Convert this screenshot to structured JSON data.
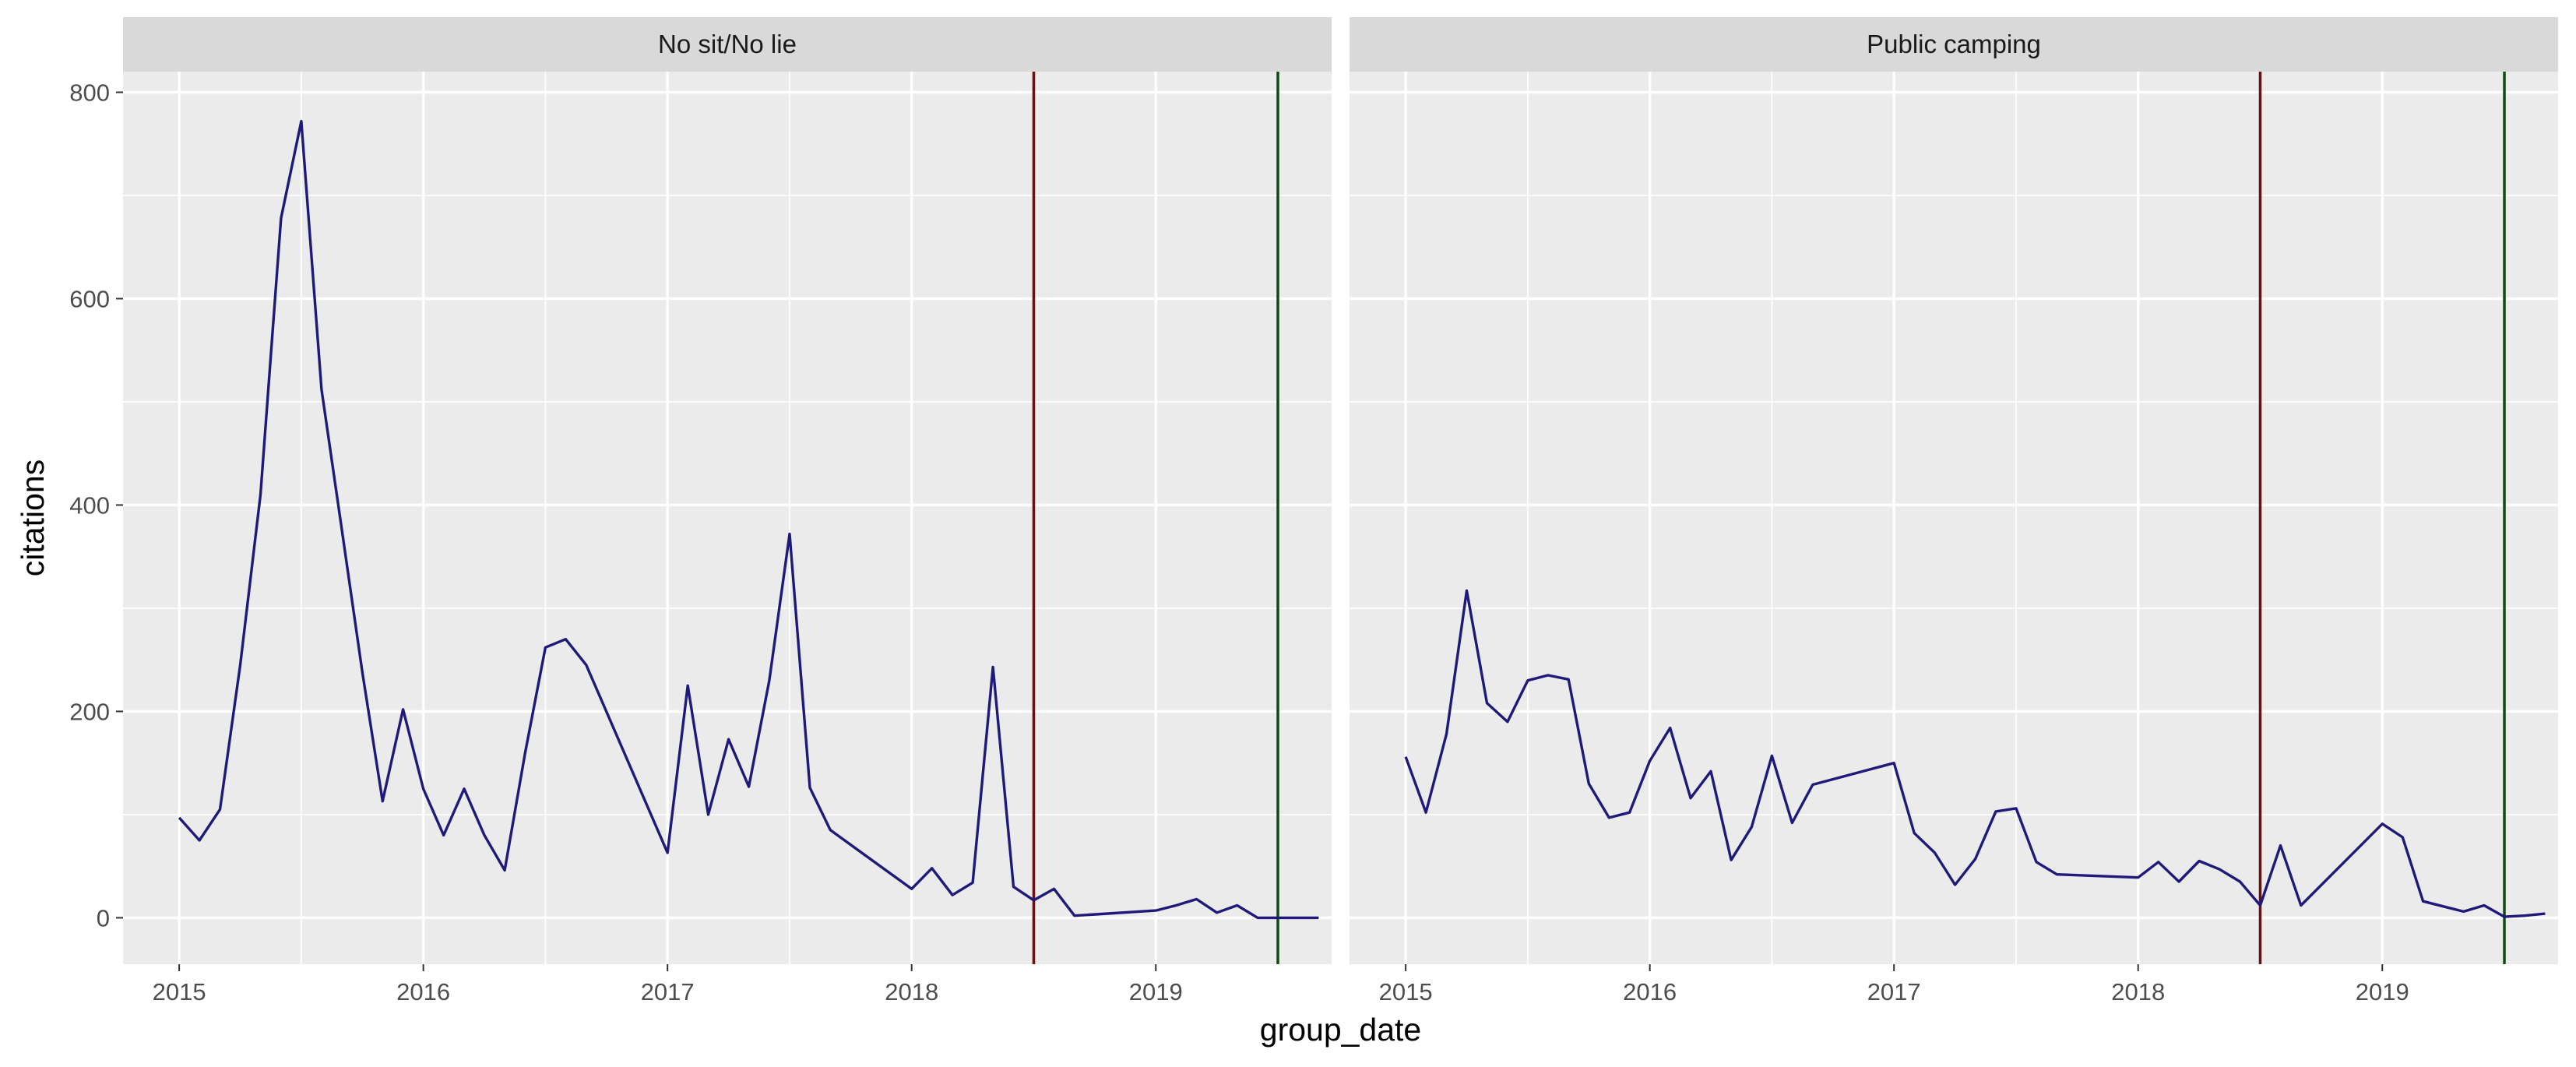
{
  "chart_data": {
    "type": "line",
    "xlabel": "group_date",
    "ylabel": "citations",
    "ylim": [
      -45,
      820
    ],
    "xlim": [
      2014.77,
      2019.72
    ],
    "x_ticks": [
      2015,
      2016,
      2017,
      2018,
      2019
    ],
    "y_ticks": [
      0,
      200,
      400,
      600,
      800
    ],
    "grid": true,
    "line_color": "#1f1a7a",
    "vlines": [
      {
        "x": 2018.5,
        "color": "#6b1010"
      },
      {
        "x": 2019.5,
        "color": "#0f4a14"
      }
    ],
    "panels": [
      {
        "label": "No sit/No lie",
        "x": [
          2015.0,
          2015.083,
          2015.167,
          2015.25,
          2015.333,
          2015.417,
          2015.5,
          2015.583,
          2015.667,
          2015.75,
          2015.833,
          2015.917,
          2016.0,
          2016.083,
          2016.167,
          2016.25,
          2016.333,
          2016.417,
          2016.5,
          2016.583,
          2016.667,
          2017.0,
          2017.083,
          2017.167,
          2017.25,
          2017.333,
          2017.417,
          2017.5,
          2017.583,
          2017.667,
          2018.0,
          2018.083,
          2018.167,
          2018.25,
          2018.333,
          2018.417,
          2018.5,
          2018.583,
          2018.667,
          2019.0,
          2019.083,
          2019.167,
          2019.25,
          2019.333,
          2019.417,
          2019.5,
          2019.583,
          2019.667
        ],
        "y": [
          97,
          75,
          105,
          245,
          410,
          678,
          772,
          512,
          375,
          238,
          113,
          202,
          125,
          80,
          125,
          80,
          46,
          160,
          262,
          270,
          245,
          63,
          225,
          100,
          173,
          127,
          230,
          372,
          126,
          85,
          28,
          48,
          22,
          34,
          243,
          30,
          17,
          28,
          2,
          7,
          12,
          18,
          5,
          12,
          0,
          0,
          0,
          0
        ]
      },
      {
        "label": "Public camping",
        "x": [
          2015.0,
          2015.083,
          2015.167,
          2015.25,
          2015.333,
          2015.417,
          2015.5,
          2015.583,
          2015.667,
          2015.75,
          2015.833,
          2015.917,
          2016.0,
          2016.083,
          2016.167,
          2016.25,
          2016.333,
          2016.417,
          2016.5,
          2016.583,
          2016.667,
          2017.0,
          2017.083,
          2017.167,
          2017.25,
          2017.333,
          2017.417,
          2017.5,
          2017.583,
          2017.667,
          2018.0,
          2018.083,
          2018.167,
          2018.25,
          2018.333,
          2018.417,
          2018.5,
          2018.583,
          2018.667,
          2019.0,
          2019.083,
          2019.167,
          2019.25,
          2019.333,
          2019.417,
          2019.5,
          2019.583,
          2019.667
        ],
        "y": [
          156,
          102,
          178,
          317,
          208,
          190,
          230,
          235,
          231,
          130,
          97,
          102,
          152,
          184,
          116,
          142,
          56,
          88,
          157,
          92,
          129,
          150,
          82,
          63,
          32,
          57,
          103,
          106,
          54,
          42,
          39,
          54,
          35,
          55,
          47,
          35,
          12,
          70,
          12,
          91,
          78,
          16,
          11,
          6,
          12,
          1,
          2,
          4
        ]
      }
    ]
  }
}
